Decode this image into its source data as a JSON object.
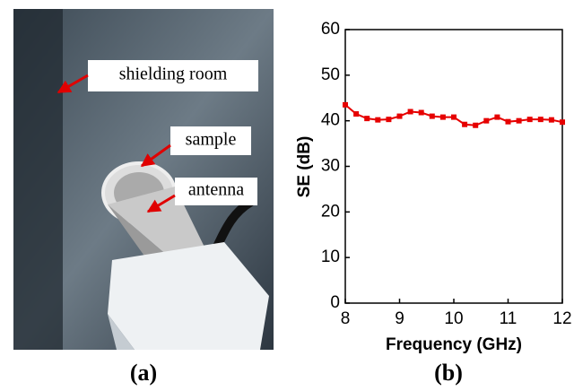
{
  "photo": {
    "annotations": [
      "shielding room",
      "sample",
      "antenna"
    ]
  },
  "panel_labels": [
    "(a)",
    "(b)"
  ],
  "chart_data": {
    "type": "line",
    "xlabel": "Frequency (GHz)",
    "ylabel": "SE (dB)",
    "x": [
      8,
      8.2,
      8.4,
      8.6,
      8.8,
      9,
      9.2,
      9.4,
      9.6,
      9.8,
      10,
      10.2,
      10.4,
      10.6,
      10.8,
      11,
      11.2,
      11.4,
      11.6,
      11.8,
      12
    ],
    "values": [
      43.5,
      41.5,
      40.5,
      40.2,
      40.3,
      41,
      42,
      41.8,
      41,
      40.8,
      40.8,
      39.2,
      39,
      40,
      40.8,
      39.8,
      40,
      40.3,
      40.3,
      40.2,
      39.7
    ],
    "color": "#e60000",
    "xlim": [
      8,
      12
    ],
    "xticks": [
      8,
      9,
      10,
      11,
      12
    ],
    "ylim": [
      0,
      60
    ],
    "yticks": [
      0,
      10,
      20,
      30,
      40,
      50,
      60
    ]
  }
}
